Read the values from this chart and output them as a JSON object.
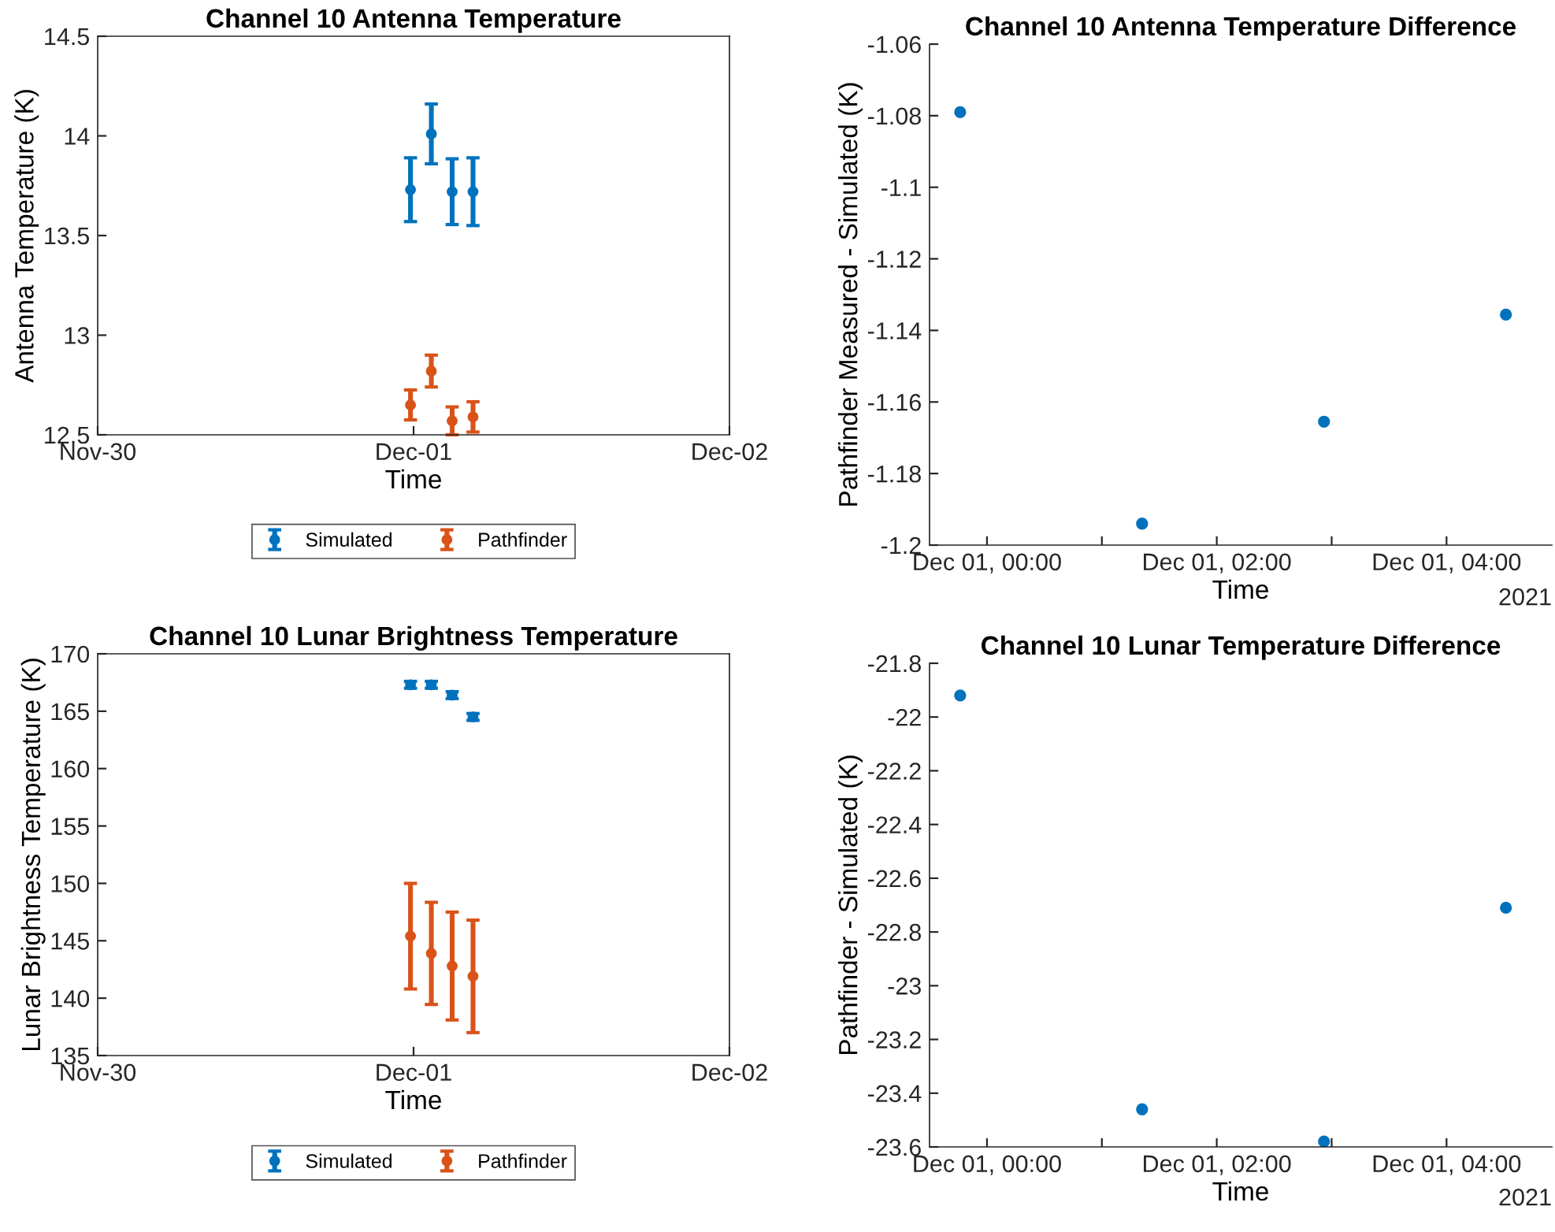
{
  "chart_data": [
    {
      "type": "scatter",
      "title": "Channel 10 Antenna Temperature",
      "xlabel": "Time",
      "ylabel": "Antenna Temperature (K)",
      "x": [
        "2021-11-30T23:46",
        "2021-12-01T01:21",
        "2021-12-01T02:56",
        "2021-12-01T04:31"
      ],
      "xlim": [
        "2021-11-30",
        "2021-12-02"
      ],
      "xticks": [
        {
          "value": "2021-11-30",
          "label": "Nov-30"
        },
        {
          "value": "2021-12-01",
          "label": "Dec-01"
        },
        {
          "value": "2021-12-02",
          "label": "Dec-02"
        }
      ],
      "ylim": [
        12.5,
        14.5
      ],
      "yticks": [
        12.5,
        13,
        13.5,
        14,
        14.5
      ],
      "marker": "circle",
      "legend": "bottom",
      "grid": false,
      "series": [
        {
          "name": "Simulated",
          "color": "#0072bd",
          "values": [
            13.73,
            14.01,
            13.72,
            13.72
          ],
          "errors": [
            0.16,
            0.15,
            0.165,
            0.17
          ]
        },
        {
          "name": "Pathfinder",
          "color": "#d95319",
          "values": [
            12.65,
            12.82,
            12.57,
            12.59
          ],
          "errors": [
            0.075,
            0.08,
            0.07,
            0.076
          ]
        }
      ]
    },
    {
      "type": "scatter",
      "title": "Channel 10 Antenna Temperature Difference",
      "xlabel": "Time",
      "ylabel": "Pathfinder Measured - Simulated (K)",
      "x": [
        "2021-11-30T23:46",
        "2021-12-01T01:21",
        "2021-12-01T02:56",
        "2021-12-01T04:31"
      ],
      "xlim": [
        "2021-11-30T23:30",
        "2021-12-01T04:55"
      ],
      "xticks": [
        {
          "value": "2021-12-01T00:00",
          "label": "Dec 01, 00:00"
        },
        {
          "value": "2021-12-01T01:00",
          "label": null
        },
        {
          "value": "2021-12-01T02:00",
          "label": "Dec 01, 02:00"
        },
        {
          "value": "2021-12-01T03:00",
          "label": null
        },
        {
          "value": "2021-12-01T04:00",
          "label": "Dec 01, 04:00"
        }
      ],
      "ylim": [
        -1.2,
        -1.06
      ],
      "yticks": [
        -1.2,
        -1.18,
        -1.16,
        -1.14,
        -1.12,
        -1.1,
        -1.08,
        -1.06
      ],
      "marker": "circle",
      "grid": false,
      "annotations": [
        "2021"
      ],
      "series": [
        {
          "color": "#0072bd",
          "values": [
            -1.079,
            -1.194,
            -1.1655,
            -1.1356
          ]
        }
      ]
    },
    {
      "type": "scatter",
      "title": "Channel 10 Lunar Brightness Temperature",
      "xlabel": "Time",
      "ylabel": "Lunar Brightness Temperature (K)",
      "x": [
        "2021-11-30T23:46",
        "2021-12-01T01:21",
        "2021-12-01T02:56",
        "2021-12-01T04:31"
      ],
      "xlim": [
        "2021-11-30",
        "2021-12-02"
      ],
      "xticks": [
        {
          "value": "2021-11-30",
          "label": "Nov-30"
        },
        {
          "value": "2021-12-01",
          "label": "Dec-01"
        },
        {
          "value": "2021-12-02",
          "label": "Dec-02"
        }
      ],
      "ylim": [
        135,
        170
      ],
      "yticks": [
        135,
        140,
        145,
        150,
        155,
        160,
        165,
        170
      ],
      "marker": "circle",
      "legend": "bottom",
      "grid": false,
      "series": [
        {
          "name": "Simulated",
          "color": "#0072bd",
          "values": [
            167.3,
            167.3,
            166.4,
            164.5
          ],
          "errors": [
            0.3,
            0.3,
            0.3,
            0.3
          ]
        },
        {
          "name": "Pathfinder",
          "color": "#d95319",
          "values": [
            145.4,
            143.9,
            142.8,
            141.9
          ],
          "errors": [
            4.6,
            4.45,
            4.7,
            4.9
          ]
        }
      ]
    },
    {
      "type": "scatter",
      "title": "Channel 10 Lunar Temperature Difference",
      "xlabel": "Time",
      "ylabel": "Pathfinder - Simulated (K)",
      "x": [
        "2021-11-30T23:46",
        "2021-12-01T01:21",
        "2021-12-01T02:56",
        "2021-12-01T04:31"
      ],
      "xlim": [
        "2021-11-30T23:30",
        "2021-12-01T04:55"
      ],
      "xticks": [
        {
          "value": "2021-12-01T00:00",
          "label": "Dec 01, 00:00"
        },
        {
          "value": "2021-12-01T01:00",
          "label": null
        },
        {
          "value": "2021-12-01T02:00",
          "label": "Dec 01, 02:00"
        },
        {
          "value": "2021-12-01T03:00",
          "label": null
        },
        {
          "value": "2021-12-01T04:00",
          "label": "Dec 01, 04:00"
        }
      ],
      "ylim": [
        -23.6,
        -21.8
      ],
      "yticks": [
        -23.6,
        -23.4,
        -23.2,
        -23,
        -22.8,
        -22.6,
        -22.4,
        -22.2,
        -22,
        -21.8
      ],
      "marker": "circle",
      "grid": false,
      "annotations": [
        "2021"
      ],
      "series": [
        {
          "color": "#0072bd",
          "values": [
            -21.92,
            -23.46,
            -23.58,
            -22.71
          ]
        }
      ]
    }
  ]
}
